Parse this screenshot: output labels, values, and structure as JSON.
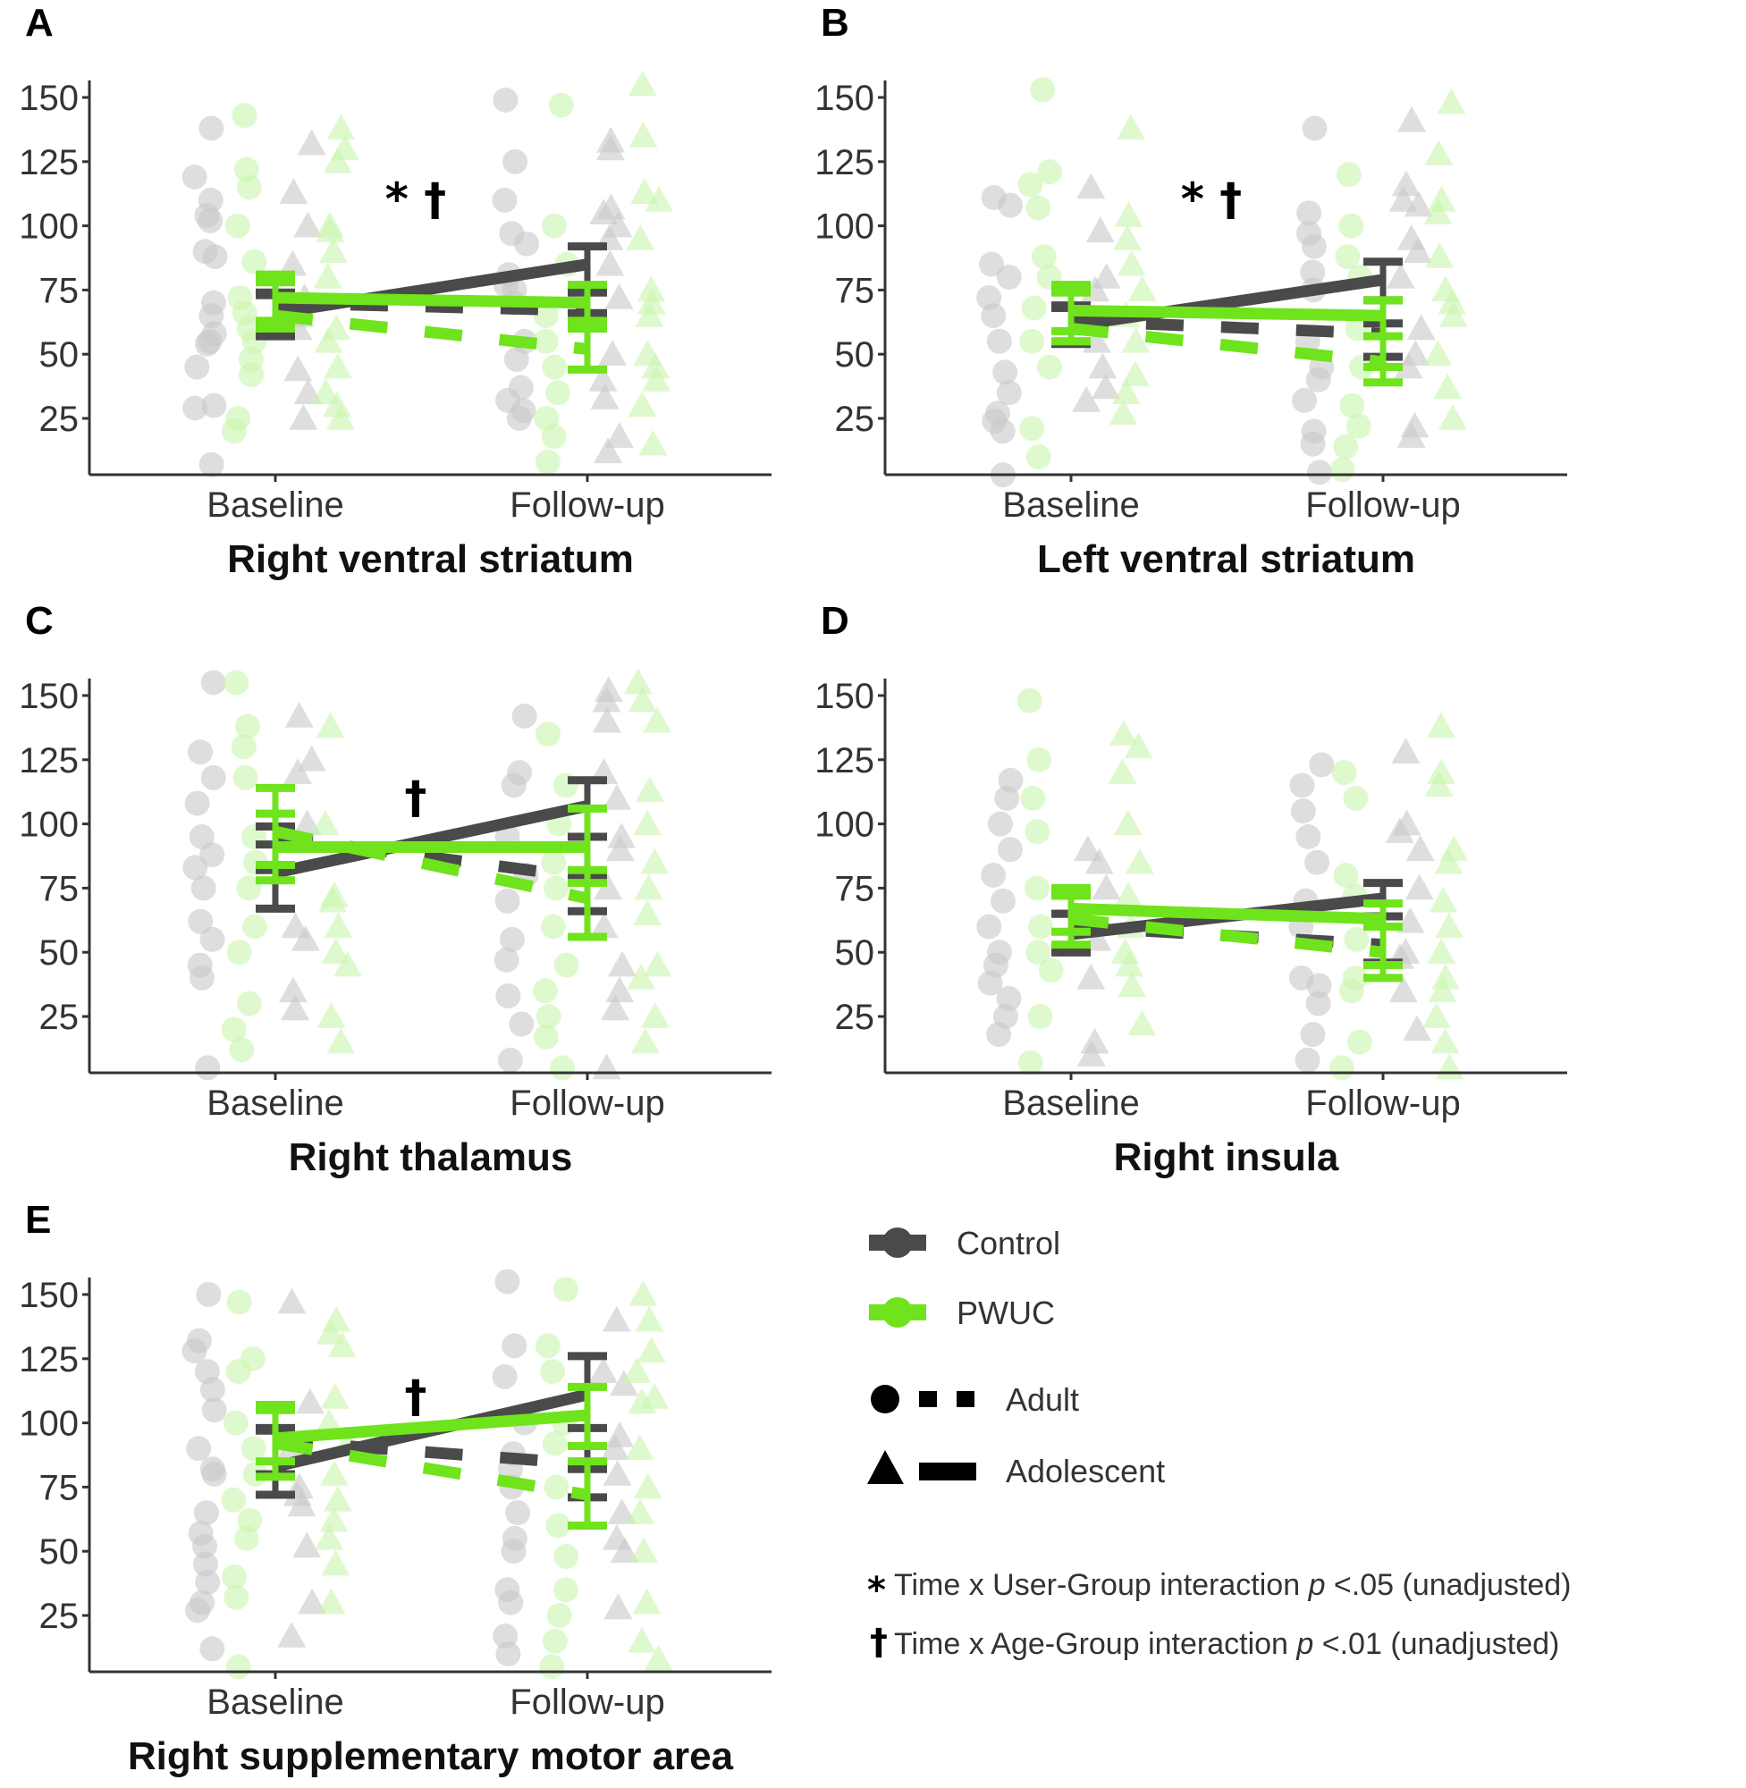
{
  "colors": {
    "control": "#4a4a4a",
    "pwuc": "#6fe31c",
    "control_point": "#c8c8c8",
    "pwuc_point": "#c9f5ae",
    "axis": "#333333"
  },
  "legend": {
    "groups": [
      {
        "key": "control",
        "label": "Control"
      },
      {
        "key": "pwuc",
        "label": "PWUC"
      }
    ],
    "ages": [
      {
        "key": "adult",
        "label": "Adult",
        "marker": "circle",
        "line": "dashed"
      },
      {
        "key": "adolescent",
        "label": "Adolescent",
        "marker": "triangle",
        "line": "solid"
      }
    ],
    "footnotes": [
      {
        "symbol": "*",
        "pre": "Time x User-Group interaction ",
        "italic": "p",
        "post": " <.05 (unadjusted)"
      },
      {
        "symbol": "†",
        "pre": "Time x Age-Group interaction ",
        "italic": "p",
        "post": " <.01 (unadjusted)"
      }
    ]
  },
  "chart_data": [
    {
      "id": "A",
      "type": "line",
      "title": "Right ventral striatum",
      "annotation": "* †",
      "categories": [
        "Baseline",
        "Follow-up"
      ],
      "yticks": [
        25,
        50,
        75,
        100,
        125,
        150
      ],
      "ylim": [
        3,
        157
      ],
      "series": [
        {
          "name": "Control Adult",
          "group": "control",
          "age": "adult",
          "values": [
            70,
            67
          ],
          "err_low": [
            62,
            60
          ],
          "err_high": [
            74,
            74
          ]
        },
        {
          "name": "Control Adolescent",
          "group": "control",
          "age": "adolescent",
          "values": [
            66,
            85
          ],
          "err_low": [
            57,
            66
          ],
          "err_high": [
            73,
            92
          ]
        },
        {
          "name": "PWUC Adult",
          "group": "pwuc",
          "age": "adult",
          "values": [
            65,
            52
          ],
          "err_low": [
            60,
            44
          ],
          "err_high": [
            78,
            63
          ]
        },
        {
          "name": "PWUC Adolescent",
          "group": "pwuc",
          "age": "adolescent",
          "values": [
            72,
            70
          ],
          "err_low": [
            63,
            60
          ],
          "err_high": [
            81,
            77
          ]
        }
      ],
      "points": {
        "control_adult": [
          [
            138,
            119,
            110,
            104,
            102,
            90,
            88,
            70,
            65,
            58,
            55,
            54,
            45,
            30,
            29,
            7
          ],
          [
            149,
            125,
            110,
            97,
            93,
            81,
            77,
            75,
            70,
            55,
            48,
            37,
            32,
            28,
            25
          ]
        ],
        "control_adolescent": [
          [
            132,
            113,
            100,
            85,
            72,
            65,
            60,
            44,
            35,
            25
          ],
          [
            133,
            130,
            107,
            105,
            100,
            95,
            85,
            72,
            50,
            40,
            33,
            18,
            12
          ]
        ],
        "pwuc_adult": [
          [
            143,
            122,
            115,
            100,
            86,
            72,
            66,
            60,
            55,
            48,
            42,
            25,
            20
          ],
          [
            147,
            100,
            85,
            65,
            55,
            45,
            35,
            25,
            18,
            8
          ]
        ],
        "pwuc_adolescent": [
          [
            138,
            130,
            125,
            100,
            98,
            90,
            80,
            60,
            55,
            45,
            35,
            30,
            25
          ],
          [
            155,
            135,
            113,
            110,
            95,
            75,
            70,
            65,
            50,
            45,
            40,
            30,
            15
          ]
        ]
      }
    },
    {
      "id": "B",
      "type": "line",
      "title": "Left ventral striatum",
      "annotation": "* †",
      "categories": [
        "Baseline",
        "Follow-up"
      ],
      "yticks": [
        25,
        50,
        75,
        100,
        125,
        150
      ],
      "ylim": [
        3,
        157
      ],
      "series": [
        {
          "name": "Control Adult",
          "group": "control",
          "age": "adult",
          "values": [
            63,
            58
          ],
          "err_low": [
            55,
            49
          ],
          "err_high": [
            69,
            62
          ]
        },
        {
          "name": "Control Adolescent",
          "group": "control",
          "age": "adolescent",
          "values": [
            61,
            79
          ],
          "err_low": [
            54,
            71
          ],
          "err_high": [
            68,
            86
          ]
        },
        {
          "name": "PWUC Adult",
          "group": "pwuc",
          "age": "adult",
          "values": [
            60,
            47
          ],
          "err_low": [
            55,
            39
          ],
          "err_high": [
            77,
            57
          ]
        },
        {
          "name": "PWUC Adolescent",
          "group": "pwuc",
          "age": "adolescent",
          "values": [
            67,
            65
          ],
          "err_low": [
            59,
            45
          ],
          "err_high": [
            74,
            71
          ]
        }
      ],
      "points": {
        "control_adult": [
          [
            111,
            108,
            85,
            80,
            72,
            65,
            55,
            43,
            35,
            27,
            24,
            20,
            3
          ],
          [
            138,
            105,
            97,
            92,
            82,
            75,
            55,
            45,
            40,
            32,
            20,
            15,
            4
          ]
        ],
        "control_adolescent": [
          [
            115,
            98,
            80,
            75,
            55,
            45,
            37,
            32
          ],
          [
            141,
            116,
            110,
            108,
            95,
            90,
            80,
            60,
            50,
            45,
            22,
            18
          ]
        ],
        "pwuc_adult": [
          [
            153,
            121,
            116,
            107,
            88,
            80,
            68,
            55,
            45,
            21,
            10
          ],
          [
            120,
            100,
            88,
            80,
            60,
            45,
            30,
            22,
            14,
            5
          ]
        ],
        "pwuc_adolescent": [
          [
            138,
            104,
            95,
            85,
            75,
            65,
            55,
            42,
            35,
            27
          ],
          [
            148,
            128,
            110,
            105,
            88,
            75,
            70,
            65,
            50,
            37,
            25
          ]
        ]
      }
    },
    {
      "id": "C",
      "type": "line",
      "title": "Right thalamus",
      "annotation": "†",
      "categories": [
        "Baseline",
        "Follow-up"
      ],
      "yticks": [
        25,
        50,
        75,
        100,
        125,
        150
      ],
      "ylim": [
        3,
        157
      ],
      "series": [
        {
          "name": "Control Adult",
          "group": "control",
          "age": "adult",
          "values": [
            95,
            79
          ],
          "err_low": [
            82,
            66
          ],
          "err_high": [
            99,
            95
          ]
        },
        {
          "name": "Control Adolescent",
          "group": "control",
          "age": "adolescent",
          "values": [
            81,
            107
          ],
          "err_low": [
            67,
            79
          ],
          "err_high": [
            92,
            117
          ]
        },
        {
          "name": "PWUC Adult",
          "group": "pwuc",
          "age": "adult",
          "values": [
            97,
            71
          ],
          "err_low": [
            78,
            56
          ],
          "err_high": [
            104,
            82
          ]
        },
        {
          "name": "PWUC Adolescent",
          "group": "pwuc",
          "age": "adolescent",
          "values": [
            91,
            91
          ],
          "err_low": [
            84,
            77
          ],
          "err_high": [
            114,
            106
          ]
        }
      ],
      "points": {
        "control_adult": [
          [
            155,
            128,
            118,
            108,
            95,
            88,
            83,
            75,
            62,
            55,
            45,
            40,
            5
          ],
          [
            142,
            120,
            115,
            95,
            80,
            70,
            55,
            47,
            33,
            22,
            8
          ]
        ],
        "control_adolescent": [
          [
            142,
            125,
            120,
            100,
            60,
            55,
            35,
            28
          ],
          [
            152,
            148,
            140,
            120,
            110,
            95,
            90,
            75,
            60,
            45,
            35,
            28,
            5
          ]
        ],
        "pwuc_adult": [
          [
            155,
            138,
            130,
            118,
            95,
            85,
            75,
            60,
            50,
            30,
            20,
            12
          ],
          [
            135,
            115,
            100,
            85,
            75,
            60,
            45,
            35,
            25,
            17,
            5
          ]
        ],
        "pwuc_adolescent": [
          [
            138,
            100,
            72,
            70,
            60,
            50,
            45,
            25,
            15
          ],
          [
            155,
            148,
            140,
            113,
            100,
            85,
            75,
            65,
            45,
            40,
            25,
            15
          ]
        ]
      }
    },
    {
      "id": "D",
      "type": "line",
      "title": "Right insula",
      "annotation": "",
      "categories": [
        "Baseline",
        "Follow-up"
      ],
      "yticks": [
        25,
        50,
        75,
        100,
        125,
        150
      ],
      "ylim": [
        3,
        157
      ],
      "series": [
        {
          "name": "Control Adult",
          "group": "control",
          "age": "adult",
          "values": [
            60,
            53
          ],
          "err_low": [
            50,
            46
          ],
          "err_high": [
            65,
            64
          ]
        },
        {
          "name": "Control Adolescent",
          "group": "control",
          "age": "adolescent",
          "values": [
            57,
            71
          ],
          "err_low": [
            50,
            60
          ],
          "err_high": [
            65,
            77
          ]
        },
        {
          "name": "PWUC Adult",
          "group": "pwuc",
          "age": "adult",
          "values": [
            63,
            50
          ],
          "err_low": [
            53,
            40
          ],
          "err_high": [
            72,
            60
          ]
        },
        {
          "name": "PWUC Adolescent",
          "group": "pwuc",
          "age": "adolescent",
          "values": [
            67,
            63
          ],
          "err_low": [
            58,
            45
          ],
          "err_high": [
            75,
            69
          ]
        }
      ],
      "points": {
        "control_adult": [
          [
            117,
            110,
            100,
            90,
            80,
            70,
            60,
            50,
            45,
            38,
            32,
            25,
            18
          ],
          [
            123,
            115,
            105,
            95,
            85,
            70,
            60,
            40,
            37,
            30,
            18,
            8
          ]
        ],
        "control_adolescent": [
          [
            90,
            85,
            75,
            55,
            40,
            15,
            10
          ],
          [
            128,
            100,
            97,
            90,
            75,
            62,
            50,
            48,
            35,
            20
          ]
        ],
        "pwuc_adult": [
          [
            148,
            125,
            110,
            97,
            75,
            60,
            50,
            43,
            25,
            7
          ],
          [
            120,
            110,
            80,
            72,
            55,
            40,
            35,
            15,
            5
          ]
        ],
        "pwuc_adolescent": [
          [
            135,
            130,
            120,
            100,
            85,
            72,
            60,
            50,
            45,
            37,
            22
          ],
          [
            138,
            120,
            115,
            90,
            85,
            70,
            60,
            50,
            40,
            35,
            25,
            15,
            5
          ]
        ]
      }
    },
    {
      "id": "E",
      "type": "line",
      "title": "Right supplementary motor area",
      "annotation": "†",
      "categories": [
        "Baseline",
        "Follow-up"
      ],
      "yticks": [
        25,
        50,
        75,
        100,
        125,
        150
      ],
      "ylim": [
        3,
        157
      ],
      "series": [
        {
          "name": "Control Adult",
          "group": "control",
          "age": "adult",
          "values": [
            93,
            84
          ],
          "err_low": [
            80,
            71
          ],
          "err_high": [
            98,
            98
          ]
        },
        {
          "name": "Control Adolescent",
          "group": "control",
          "age": "adolescent",
          "values": [
            83,
            111
          ],
          "err_low": [
            72,
            82
          ],
          "err_high": [
            97,
            126
          ]
        },
        {
          "name": "PWUC Adult",
          "group": "pwuc",
          "age": "adult",
          "values": [
            92,
            72
          ],
          "err_low": [
            79,
            60
          ],
          "err_high": [
            107,
            85
          ]
        },
        {
          "name": "PWUC Adolescent",
          "group": "pwuc",
          "age": "adolescent",
          "values": [
            94,
            103
          ],
          "err_low": [
            85,
            91
          ],
          "err_high": [
            105,
            114
          ]
        }
      ],
      "points": {
        "control_adult": [
          [
            150,
            132,
            128,
            120,
            113,
            105,
            90,
            82,
            80,
            65,
            57,
            52,
            45,
            38,
            30,
            27,
            12
          ],
          [
            155,
            130,
            118,
            100,
            88,
            82,
            75,
            65,
            55,
            50,
            35,
            30,
            17,
            10
          ]
        ],
        "control_adolescent": [
          [
            147,
            108,
            90,
            75,
            72,
            68,
            52,
            30,
            17
          ],
          [
            140,
            120,
            115,
            95,
            90,
            80,
            65,
            55,
            50,
            28
          ]
        ],
        "pwuc_adult": [
          [
            147,
            125,
            120,
            100,
            90,
            80,
            70,
            62,
            55,
            40,
            32,
            5
          ],
          [
            152,
            130,
            120,
            100,
            92,
            75,
            60,
            48,
            35,
            25,
            15,
            5
          ]
        ],
        "pwuc_adolescent": [
          [
            140,
            135,
            130,
            110,
            100,
            92,
            80,
            70,
            62,
            55,
            45,
            30
          ],
          [
            150,
            140,
            128,
            120,
            110,
            108,
            90,
            75,
            65,
            50,
            30,
            15,
            8
          ]
        ]
      }
    }
  ]
}
